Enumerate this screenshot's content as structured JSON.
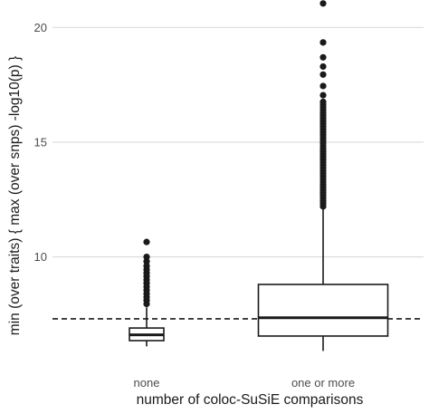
{
  "chart_data": {
    "type": "box",
    "xlabel": "number of coloc-SuSiE comparisons",
    "ylabel": "min (over traits) { max (over snps) -log10(p) }",
    "ylim": [
      5.6,
      21.2
    ],
    "y_ticks": [
      10,
      15,
      20
    ],
    "grid": "horizontal major",
    "reference_line": {
      "y": 7.3,
      "style": "dashed"
    },
    "categories": [
      "none",
      "one or more"
    ],
    "boxes": [
      {
        "category": "none",
        "whisker_low": 6.1,
        "q1": 6.35,
        "median": 6.6,
        "q3": 6.9,
        "whisker_high": 7.8,
        "outliers": [
          7.95,
          8.1,
          8.25,
          8.4,
          8.55,
          8.7,
          8.85,
          9.0,
          9.15,
          9.3,
          9.45,
          9.6,
          9.8,
          10.0,
          10.65
        ]
      },
      {
        "category": "one or more",
        "whisker_low": 5.9,
        "q1": 6.55,
        "median": 7.35,
        "q3": 8.8,
        "whisker_high": 12.15,
        "outliers_band": {
          "from": 12.2,
          "to": 16.8,
          "step": 0.12
        },
        "outliers": [
          17.05,
          17.45,
          17.95,
          18.3,
          18.7,
          19.35,
          21.05
        ]
      }
    ]
  }
}
